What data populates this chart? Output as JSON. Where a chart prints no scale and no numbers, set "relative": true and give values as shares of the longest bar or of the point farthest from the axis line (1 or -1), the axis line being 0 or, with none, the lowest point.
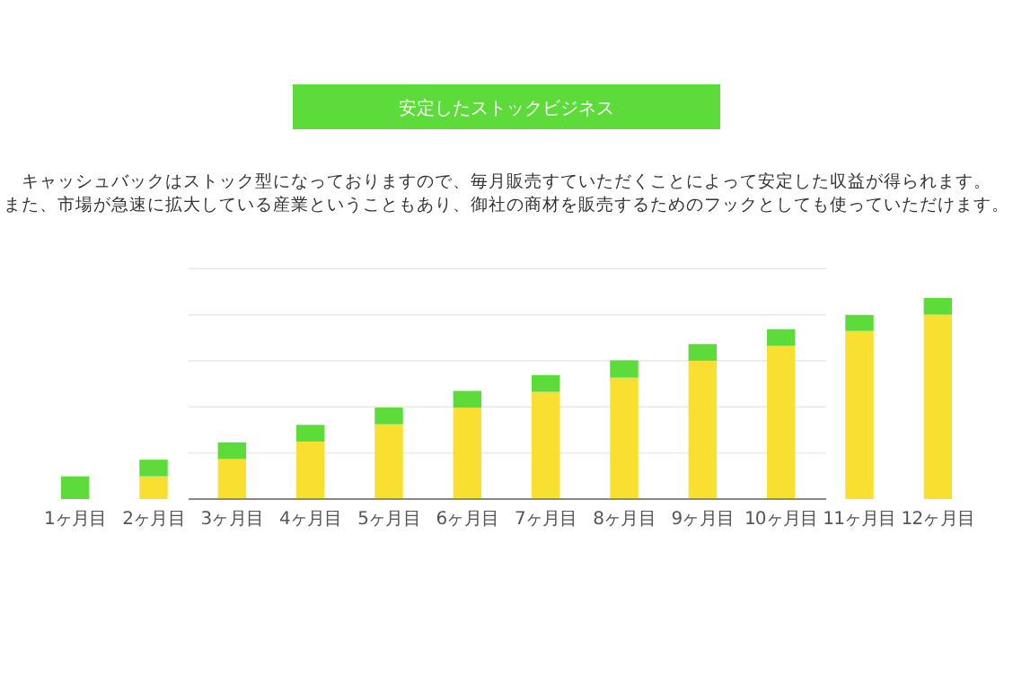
{
  "chart_data": {
    "type": "bar",
    "title": "安定したストックビジネス",
    "subtitle": "キャッシュバックはストック型になっておりますので、毎月販売すていただくことによって安定した収益が得られます。",
    "annotations": [
      "また、市場が急速に拡大している産業ということもあり、御社の商材を販売するためのフックとしても使っていただけます。"
    ],
    "categories": [
      "1ヶ月目",
      "2ヶ月目",
      "3ヶ月目",
      "4ヶ月目",
      "5ヶ月目",
      "6ヶ月目",
      "7ヶ月目",
      "8ヶ月目",
      "9ヶ月目",
      "10ヶ月目",
      "11ヶ月目",
      "12ヶ月目"
    ],
    "relative": true,
    "stacked": true,
    "ref_lines": [
      {
        "axis": "y",
        "value": 0.229,
        "color": "#e8ece8"
      },
      {
        "axis": "y",
        "value": 0.458,
        "color": "#e8ece8"
      },
      {
        "axis": "y",
        "value": 0.688,
        "color": "#e8ece8"
      },
      {
        "axis": "y",
        "value": 0.917,
        "color": "#e8ece8"
      },
      {
        "axis": "y",
        "value": 1.146,
        "color": "#e8ece8"
      }
    ],
    "series": [
      {
        "color": "#f9df30",
        "values": [
          0,
          0.113,
          0.199,
          0.286,
          0.372,
          0.455,
          0.533,
          0.604,
          0.688,
          0.762,
          0.836,
          0.917
        ]
      },
      {
        "color": "#5ddb3a",
        "values": [
          0.113,
          0.083,
          0.083,
          0.083,
          0.083,
          0.083,
          0.083,
          0.086,
          0.083,
          0.083,
          0.08,
          0.083
        ]
      }
    ]
  }
}
